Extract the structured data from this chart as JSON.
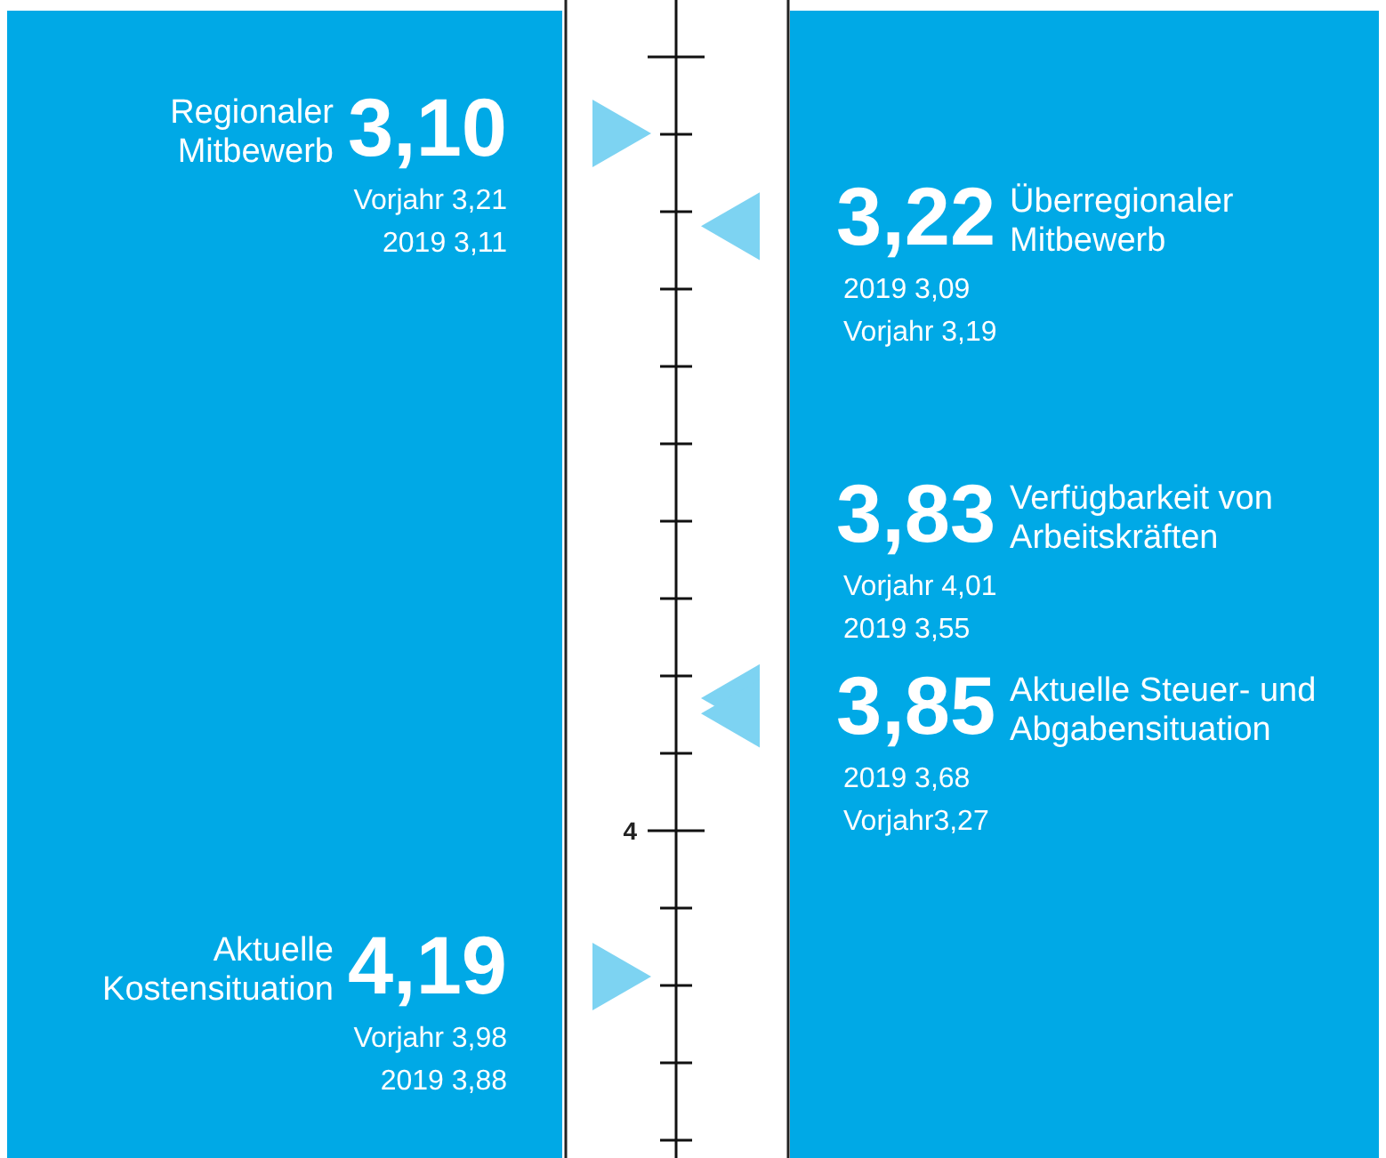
{
  "chart_data": {
    "type": "other",
    "categories": [
      "Regionaler Mitbewerb",
      "Überregionaler Mitbewerb",
      "Verfügbarkeit von Arbeitskräften",
      "Aktuelle Steuer- und Abgabensituation",
      "Aktuelle Kostensituation"
    ],
    "values": [
      3.1,
      3.22,
      3.83,
      3.85,
      4.19
    ],
    "value_labels": [
      "3,10",
      "3,22",
      "3,83",
      "3,85",
      "4,19"
    ],
    "color": "#7dd3f2",
    "annotations": [
      "Vorjahr 3,21",
      "2019 3,11",
      "2019 3,09",
      "Vorjahr 3,19",
      "Vorjahr 4,01",
      "2019 3,55",
      "2019 3,68",
      "Vorjahr3,27",
      "Vorjahr 3,98",
      "2019 3,88",
      "4"
    ]
  }
}
